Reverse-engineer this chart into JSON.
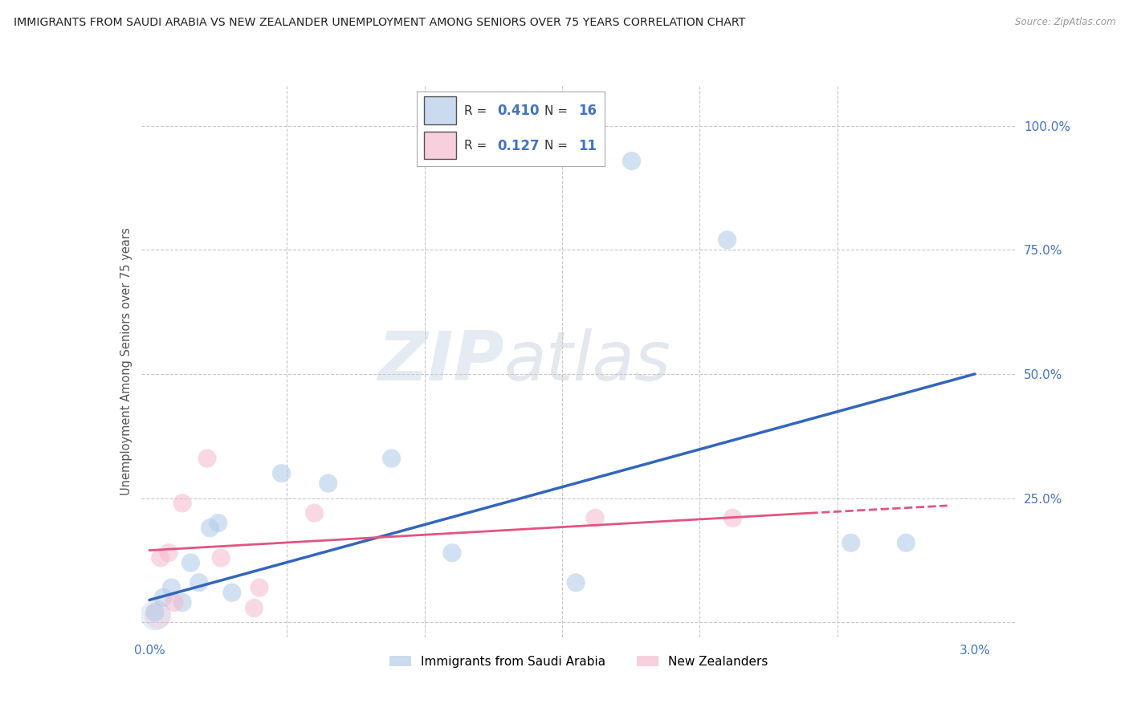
{
  "title": "IMMIGRANTS FROM SAUDI ARABIA VS NEW ZEALANDER UNEMPLOYMENT AMONG SENIORS OVER 75 YEARS CORRELATION CHART",
  "source": "Source: ZipAtlas.com",
  "ylabel": "Unemployment Among Seniors over 75 years",
  "xlim_min": -0.03,
  "xlim_max": 3.15,
  "ylim_min": -3.0,
  "ylim_max": 108.0,
  "watermark_line1": "ZIP",
  "watermark_line2": "atlas",
  "blue_color": "#aec9e8",
  "blue_line_color": "#3366bb",
  "pink_color": "#f5b8cc",
  "pink_line_color": "#e05580",
  "background_color": "#ffffff",
  "grid_color": "#c8c8c8",
  "blue_x": [
    0.02,
    0.05,
    0.08,
    0.12,
    0.15,
    0.18,
    0.22,
    0.25,
    0.3,
    0.48,
    0.65,
    0.88,
    1.1,
    1.55,
    2.1,
    2.55,
    2.75
  ],
  "blue_y": [
    2.0,
    5.0,
    7.0,
    4.0,
    12.0,
    8.0,
    19.0,
    20.0,
    6.0,
    30.0,
    28.0,
    33.0,
    14.0,
    8.0,
    77.0,
    16.0,
    16.0
  ],
  "blue_sizes": [
    80,
    80,
    80,
    80,
    80,
    80,
    80,
    80,
    80,
    80,
    80,
    80,
    80,
    80,
    80,
    80,
    80
  ],
  "blue_outlier_x": [
    1.75
  ],
  "blue_outlier_y": [
    93.0
  ],
  "blue_large_x": 0.02,
  "blue_large_y": 1.5,
  "blue_large_size": 700,
  "pink_x": [
    0.04,
    0.07,
    0.09,
    0.12,
    0.21,
    0.26,
    0.4,
    0.6,
    1.62,
    2.12
  ],
  "pink_y": [
    13.0,
    14.0,
    4.0,
    24.0,
    33.0,
    13.0,
    7.0,
    22.0,
    21.0,
    21.0
  ],
  "pink_sizes": [
    80,
    80,
    80,
    80,
    80,
    80,
    80,
    80,
    80,
    80
  ],
  "pink_outlier_x": [
    0.38
  ],
  "pink_outlier_y": [
    3.0
  ],
  "pink_large_x": 0.03,
  "pink_large_y": 1.5,
  "pink_large_size": 550,
  "blue_reg_x0": 0.0,
  "blue_reg_y0": 4.5,
  "blue_reg_x1": 3.0,
  "blue_reg_y1": 50.0,
  "pink_reg_x0": 0.0,
  "pink_reg_y0": 14.5,
  "pink_reg_x1": 2.4,
  "pink_reg_y1": 22.0,
  "pink_dash_x0": 2.4,
  "pink_dash_y0": 22.0,
  "pink_dash_x1": 2.9,
  "pink_dash_y1": 23.5,
  "y_gridlines": [
    0,
    25,
    50,
    75,
    100
  ],
  "x_gridlines": [
    0.5,
    1.0,
    1.5,
    2.0,
    2.5
  ],
  "x_tick_positions": [
    0.0,
    0.5,
    1.0,
    1.5,
    2.0,
    2.5,
    3.0
  ],
  "x_tick_labels": [
    "0.0%",
    "",
    "",
    "",
    "",
    "",
    "3.0%"
  ],
  "right_y_ticks": [
    0,
    25,
    50,
    75,
    100
  ],
  "right_y_labels": [
    "",
    "25.0%",
    "50.0%",
    "75.0%",
    "100.0%"
  ],
  "legend_label1": "Immigrants from Saudi Arabia",
  "legend_label2": "New Zealanders",
  "r1": "0.410",
  "n1": "16",
  "r2": "0.127",
  "n2": "11"
}
